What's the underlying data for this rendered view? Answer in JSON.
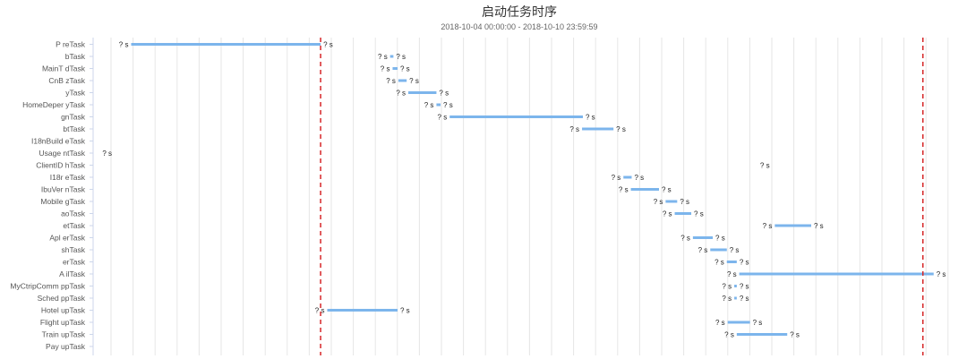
{
  "chart_data": {
    "type": "gantt",
    "title": "启动任务时序",
    "subtitle": "2018-10-04 00:00:00 - 2018-10-10 23:59:59",
    "bar_label": "? s",
    "colors": {
      "bar": "#7cb5ec",
      "marker": "#d62728",
      "grid": "#e6e6e6",
      "axis": "#ccd6eb"
    },
    "xlim": [
      0,
      100
    ],
    "markers": [
      24.9,
      97.7
    ],
    "tasks": [
      {
        "label": "P    reTask",
        "start": 2.0,
        "end": 24.9,
        "labels": true
      },
      {
        "label": "bTask",
        "start": 33.3,
        "end": 33.7,
        "labels": true
      },
      {
        "label": "MainT    dTask",
        "start": 33.6,
        "end": 34.2,
        "labels": true
      },
      {
        "label": "CnB    zTask",
        "start": 34.3,
        "end": 35.3,
        "labels": true
      },
      {
        "label": "yTask",
        "start": 35.5,
        "end": 38.9,
        "labels": true
      },
      {
        "label": "HomeDeper    yTask",
        "start": 38.9,
        "end": 39.4,
        "labels": true
      },
      {
        "label": "gnTask",
        "start": 40.5,
        "end": 56.6,
        "labels": true
      },
      {
        "label": "btTask",
        "start": 56.5,
        "end": 60.3,
        "labels": true
      },
      {
        "label": "I18nBuild    eTask",
        "start": null,
        "end": null,
        "labels": false
      },
      {
        "label": "Usage    ntTask",
        "start": 0.0,
        "end": 0.0,
        "labels": true
      },
      {
        "label": "ClientID    hTask",
        "start": 79.5,
        "end": 79.5,
        "labels": true
      },
      {
        "label": "I18r    eTask",
        "start": 61.5,
        "end": 62.5,
        "labels": true
      },
      {
        "label": "IbuVer    nTask",
        "start": 62.4,
        "end": 65.8,
        "labels": true
      },
      {
        "label": "Mobile    gTask",
        "start": 66.6,
        "end": 68.0,
        "labels": true
      },
      {
        "label": "aoTask",
        "start": 67.7,
        "end": 69.7,
        "labels": true
      },
      {
        "label": "etTask",
        "start": 79.8,
        "end": 84.2,
        "labels": true
      },
      {
        "label": "Apl    erTask",
        "start": 69.9,
        "end": 72.3,
        "labels": true
      },
      {
        "label": "shTask",
        "start": 72.0,
        "end": 74.0,
        "labels": true
      },
      {
        "label": "erTask",
        "start": 74.0,
        "end": 75.2,
        "labels": true
      },
      {
        "label": "A    ilTask",
        "start": 75.5,
        "end": 99.0,
        "labels": true
      },
      {
        "label": "MyCtripComm    ppTask",
        "start": 74.9,
        "end": 75.2,
        "labels": true
      },
      {
        "label": "Sched    ppTask",
        "start": 74.9,
        "end": 75.2,
        "labels": true
      },
      {
        "label": "Hotel    upTask",
        "start": 25.7,
        "end": 34.2,
        "labels": true
      },
      {
        "label": "Flight    upTask",
        "start": 74.1,
        "end": 76.8,
        "labels": true
      },
      {
        "label": "Train    upTask",
        "start": 75.2,
        "end": 81.3,
        "labels": true
      },
      {
        "label": "Pay    upTask",
        "start": null,
        "end": null,
        "labels": false
      }
    ]
  }
}
